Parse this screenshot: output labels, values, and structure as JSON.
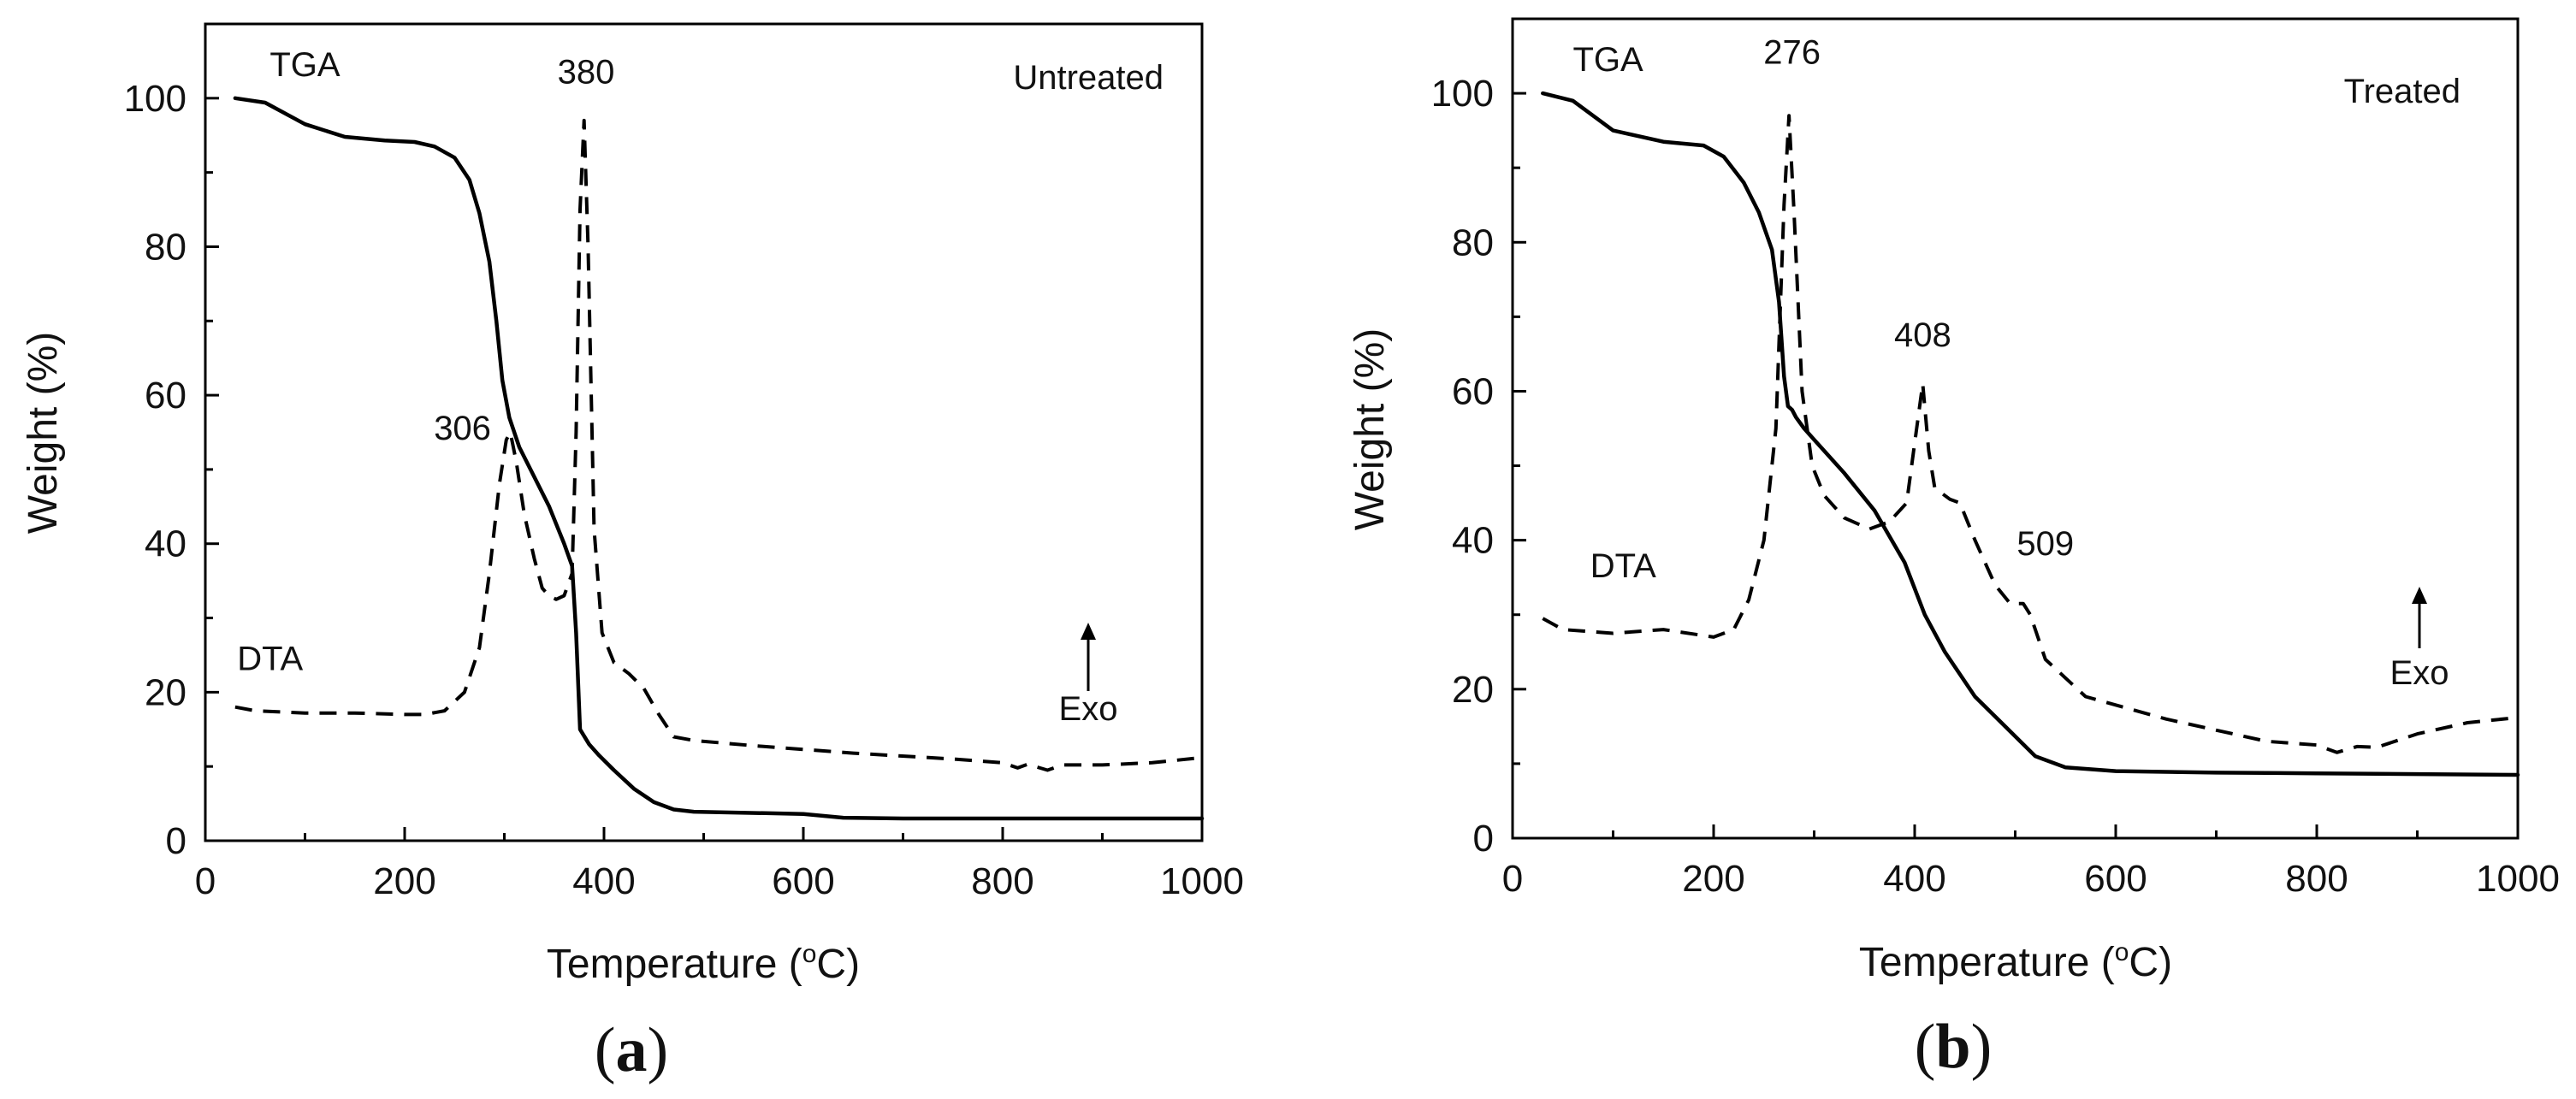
{
  "chart_data": [
    {
      "type": "line",
      "panel_label": "a",
      "annotation": "Untreated",
      "xlabel": "Temperature",
      "xlabel_unit_prefix": "(",
      "xlabel_unit_degree": "o",
      "xlabel_unit_suffix": "C)",
      "ylabel": "Weight (%)",
      "xlim": [
        0,
        1000
      ],
      "ylim": [
        0,
        110
      ],
      "xticks": [
        0,
        200,
        400,
        600,
        800,
        1000
      ],
      "yticks": [
        0,
        20,
        40,
        60,
        80,
        100
      ],
      "exo_label": "Exo",
      "series": [
        {
          "name": "TGA",
          "style": "solid",
          "x": [
            30,
            60,
            100,
            140,
            180,
            210,
            230,
            250,
            265,
            275,
            285,
            292,
            298,
            305,
            315,
            330,
            345,
            360,
            368,
            372,
            376,
            385,
            395,
            410,
            430,
            450,
            470,
            490,
            600,
            640,
            700,
            800,
            1000
          ],
          "y": [
            100,
            99.4,
            96.5,
            94.8,
            94.3,
            94.1,
            93.5,
            92,
            89,
            84.5,
            78,
            70,
            62,
            57,
            53,
            49,
            45,
            40,
            37,
            28,
            15,
            13,
            11.5,
            9.5,
            7,
            5.2,
            4.2,
            3.9,
            3.6,
            3.1,
            3.0,
            3.0,
            3.0
          ]
        },
        {
          "name": "DTA",
          "style": "dashed",
          "x": [
            30,
            50,
            100,
            150,
            200,
            220,
            240,
            260,
            275,
            285,
            295,
            302,
            306,
            312,
            320,
            330,
            338,
            345,
            352,
            360,
            368,
            372,
            376,
            380,
            384,
            390,
            398,
            410,
            425,
            440,
            455,
            470,
            490,
            550,
            650,
            750,
            800,
            815,
            825,
            845,
            860,
            900,
            950,
            1000
          ],
          "y": [
            18,
            17.5,
            17.2,
            17.2,
            17,
            17,
            17.5,
            20,
            26,
            36,
            48,
            54,
            55,
            51,
            44,
            38,
            34,
            33,
            32.5,
            33,
            36,
            55,
            85,
            97,
            80,
            42,
            28,
            24,
            22.5,
            20.5,
            17,
            14,
            13.5,
            12.8,
            11.8,
            11,
            10.5,
            9.8,
            10.3,
            9.5,
            10.2,
            10.2,
            10.5,
            11.2
          ]
        }
      ],
      "peaks": [
        {
          "label": "TGA",
          "x": 100,
          "y": 103
        },
        {
          "label": "380",
          "x": 382,
          "y": 102
        },
        {
          "label": "306",
          "x": 258,
          "y": 54
        },
        {
          "label": "DTA",
          "x": 65,
          "y": 23
        }
      ]
    },
    {
      "type": "line",
      "panel_label": "b",
      "annotation": "Treated",
      "xlabel": "Temperature",
      "xlabel_unit_prefix": "(",
      "xlabel_unit_degree": "o",
      "xlabel_unit_suffix": "C)",
      "ylabel": "Weight (%)",
      "xlim": [
        0,
        1000
      ],
      "ylim": [
        0,
        110
      ],
      "xticks": [
        0,
        200,
        400,
        600,
        800,
        1000
      ],
      "yticks": [
        0,
        20,
        40,
        60,
        80,
        100
      ],
      "exo_label": "Exo",
      "series": [
        {
          "name": "TGA",
          "style": "solid",
          "x": [
            30,
            60,
            100,
            150,
            190,
            210,
            230,
            245,
            258,
            265,
            270,
            274,
            278,
            282,
            290,
            300,
            330,
            360,
            390,
            410,
            430,
            460,
            490,
            520,
            550,
            600,
            700,
            800,
            1000
          ],
          "y": [
            100,
            99,
            95,
            93.5,
            93,
            91.5,
            88,
            84,
            79,
            72,
            62,
            58,
            57.5,
            56.5,
            55,
            53.5,
            49,
            44,
            37,
            30,
            25,
            19,
            15,
            11,
            9.5,
            9,
            8.8,
            8.7,
            8.5
          ]
        },
        {
          "name": "DTA",
          "style": "dashed",
          "x": [
            30,
            50,
            100,
            150,
            200,
            220,
            235,
            250,
            262,
            270,
            275,
            280,
            288,
            298,
            310,
            330,
            355,
            375,
            392,
            402,
            408,
            414,
            420,
            435,
            445,
            460,
            480,
            495,
            508,
            515,
            530,
            570,
            650,
            750,
            800,
            810,
            820,
            840,
            860,
            900,
            950,
            1000
          ],
          "y": [
            29.5,
            28,
            27.5,
            28,
            27,
            28,
            32,
            40,
            55,
            85,
            97,
            84,
            60,
            50,
            46,
            43,
            41.5,
            42.5,
            45,
            55,
            61,
            52,
            47,
            45.5,
            45,
            40,
            34,
            31.5,
            31.5,
            30,
            24,
            19,
            16,
            13,
            12.5,
            12,
            11.5,
            12.3,
            12.2,
            14,
            15.5,
            16.2
          ]
        }
      ],
      "peaks": [
        {
          "label": "TGA",
          "x": 95,
          "y": 103
        },
        {
          "label": "276",
          "x": 278,
          "y": 104
        },
        {
          "label": "408",
          "x": 408,
          "y": 66
        },
        {
          "label": "509",
          "x": 530,
          "y": 38
        },
        {
          "label": "DTA",
          "x": 110,
          "y": 35
        }
      ]
    }
  ]
}
